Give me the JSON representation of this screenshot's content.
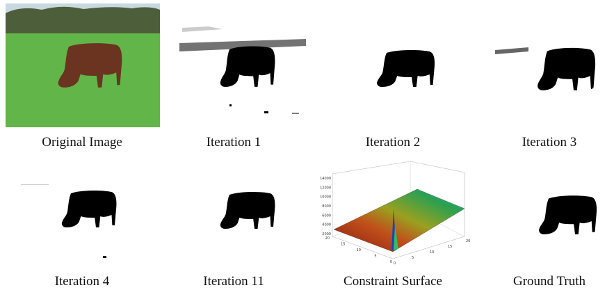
{
  "panels": [
    {
      "caption": "Original Image"
    },
    {
      "caption": "Iteration 1"
    },
    {
      "caption": "Iteration 2"
    },
    {
      "caption": "Iteration 3"
    },
    {
      "caption": "Iteration 4"
    },
    {
      "caption": "Iteration 11"
    },
    {
      "caption": "Constraint Surface"
    },
    {
      "caption": "Ground Truth"
    }
  ],
  "surface_axes": {
    "z_ticks": [
      14000,
      12000,
      10000,
      8000,
      6000,
      4000,
      2000
    ],
    "left_ticks": [
      20,
      15,
      10,
      5,
      0
    ],
    "right_ticks": [
      0,
      5,
      10,
      15,
      20
    ]
  }
}
